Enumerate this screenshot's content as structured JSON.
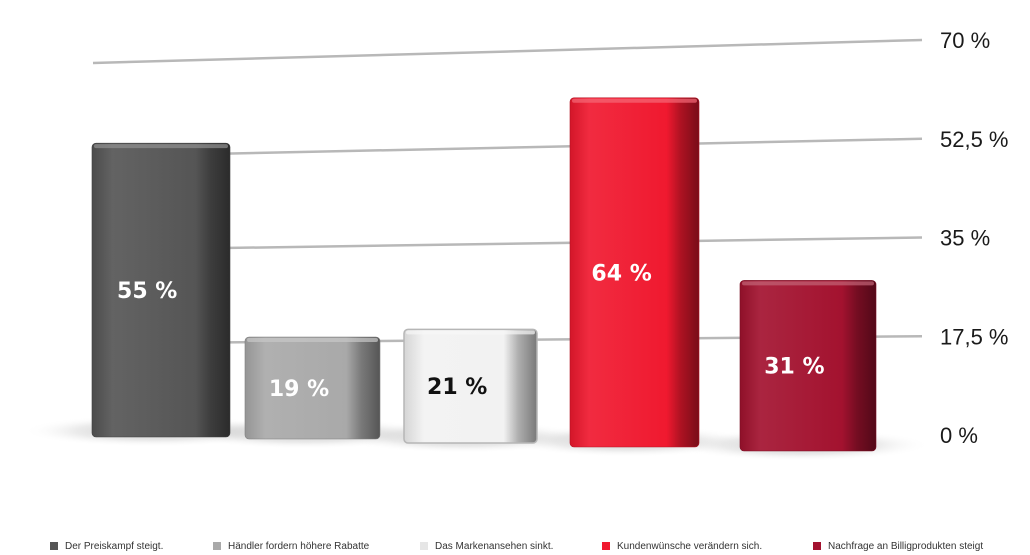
{
  "chart_data": {
    "type": "bar",
    "categories": [
      "Der Preiskampf steigt.",
      "Händler fordern höhere Rabatte",
      "Das Markenansehen sinkt.",
      "Kundenwünsche verändern sich.",
      "Nachfrage an Billigprodukten steigt"
    ],
    "values": [
      55,
      19,
      21,
      64,
      31
    ],
    "value_labels": [
      "55 %",
      "19 %",
      "21 %",
      "64 %",
      "31 %"
    ],
    "colors": [
      "#555555",
      "#a9a9a9",
      "#f2f2f2",
      "#f0192f",
      "#a3122f"
    ],
    "label_colors": [
      "#ffffff",
      "#ffffff",
      "#111111",
      "#ffffff",
      "#ffffff"
    ],
    "ylim": [
      0,
      70
    ],
    "y_ticks": [
      0,
      17.5,
      35,
      52.5,
      70
    ],
    "y_tick_labels": [
      "0 %",
      "17,5 %",
      "35 %",
      "52,5 %",
      "70 %"
    ],
    "y_axis_side": "right",
    "grid": true,
    "legend_position": "bottom",
    "title": "",
    "xlabel": "",
    "ylabel": ""
  }
}
